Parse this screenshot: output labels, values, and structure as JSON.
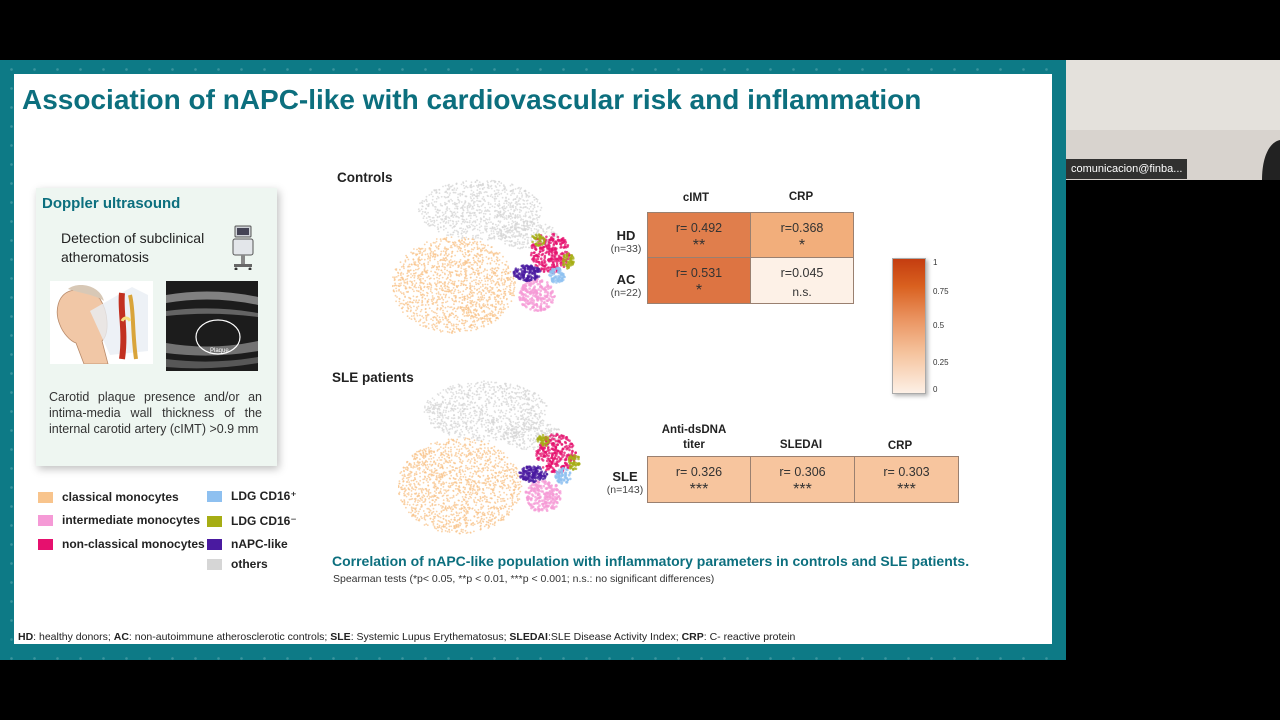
{
  "slide": {
    "title": "Association of nAPC-like with cardiovascular risk and inflammation",
    "doppler": {
      "title": "Doppler ultrasound",
      "subtitle": "Detection of subclinical atheromatosis",
      "caption": "Carotid plaque presence and/or an intima-media wall thickness of the internal carotid artery (cIMT) >0.9 mm",
      "plaque_label": "Plaque"
    },
    "legend": [
      {
        "label": "classical monocytes",
        "color": "#f8c48c"
      },
      {
        "label": "intermediate monocytes",
        "color": "#f59ad6"
      },
      {
        "label": "non-classical monocytes",
        "color": "#e6106e"
      },
      {
        "label": "LDG CD16⁺",
        "color": "#8ec0f0"
      },
      {
        "label": "LDG CD16⁻",
        "color": "#a6ad14"
      },
      {
        "label": "nAPC-like",
        "color": "#4a1aa0"
      },
      {
        "label": "others",
        "color": "#d6d6d6"
      }
    ],
    "controls": {
      "label": "Controls",
      "columns": [
        "cIMT",
        "CRP"
      ],
      "rows": [
        {
          "label": "HD",
          "n": "(n=33)",
          "cells": [
            {
              "r": "r= 0.492",
              "sig": "**"
            },
            {
              "r": "r=0.368",
              "sig": "*"
            }
          ]
        },
        {
          "label": "AC",
          "n": "(n=22)",
          "cells": [
            {
              "r": "r= 0.531",
              "sig": "*"
            },
            {
              "r": "r=0.045",
              "sig": "n.s."
            }
          ]
        }
      ]
    },
    "sle": {
      "label": "SLE patients",
      "columns": [
        "Anti-dsDNA titer",
        "SLEDAI",
        "CRP"
      ],
      "rows": [
        {
          "label": "SLE",
          "n": "(n=143)",
          "cells": [
            {
              "r": "r= 0.326",
              "sig": "***"
            },
            {
              "r": "r= 0.306",
              "sig": "***"
            },
            {
              "r": "r= 0.303",
              "sig": "***"
            }
          ]
        }
      ]
    },
    "colorbar_ticks": [
      "1",
      "0.75",
      "0.5",
      "0.25",
      "0"
    ],
    "figure_caption": "Correlation of nAPC-like population with inflammatory parameters in controls and SLE patients.",
    "stats_note": "Spearman tests (*p< 0.05, **p < 0.01, ***p < 0.001; n.s.: no significant differences)",
    "footnote": [
      {
        "abbr": "HD",
        "text": ": healthy donors; "
      },
      {
        "abbr": "AC",
        "text": ": non-autoimmune atherosclerotic controls; "
      },
      {
        "abbr": "SLE",
        "text": ": Systemic Lupus Erythematosus; "
      },
      {
        "abbr": "SLEDAI",
        "text": ":SLE Disease Activity Index; "
      },
      {
        "abbr": "CRP",
        "text": ": C- reactive protein"
      }
    ]
  },
  "participant": {
    "name": "comunicacion@finba..."
  },
  "colors": {
    "teal_title": "#0c6f7e",
    "frame": "#0d7a86",
    "cell_hd_cimt": "#e07e4c",
    "cell_hd_crp": "#f2ae7b",
    "cell_ac_cimt": "#dd7442",
    "cell_ac_crp": "#fdf1e7",
    "cell_sle": "#f7c59e"
  }
}
